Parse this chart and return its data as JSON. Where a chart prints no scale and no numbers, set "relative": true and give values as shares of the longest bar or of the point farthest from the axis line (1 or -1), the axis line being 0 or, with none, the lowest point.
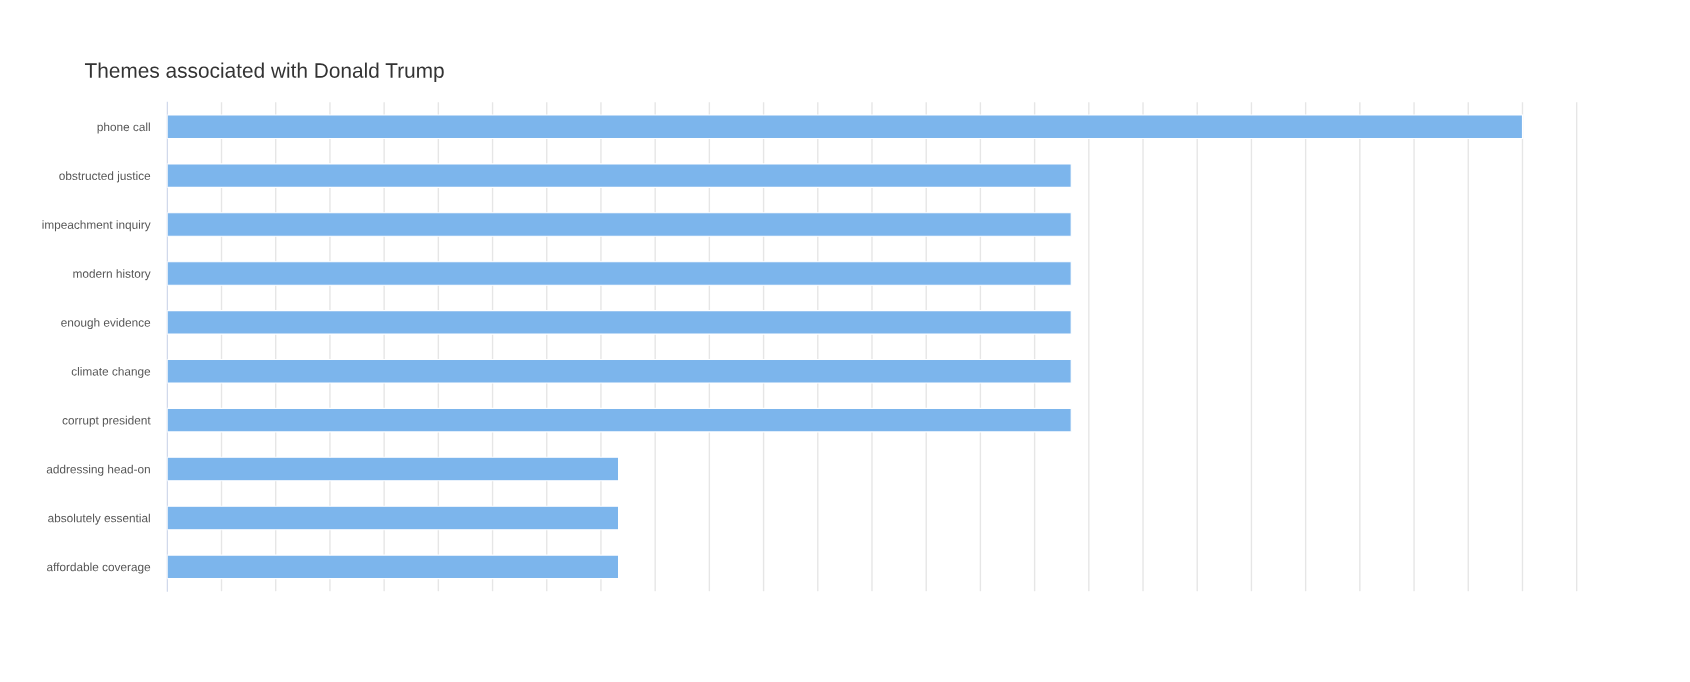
{
  "chart_data": {
    "type": "bar",
    "title": "Themes associated with Donald Trump",
    "orientation": "horizontal",
    "relative": true,
    "grid": "x",
    "categories": [
      "phone call",
      "obstructed justice",
      "impeachment inquiry",
      "modern history",
      "enough evidence",
      "climate change",
      "corrupt president",
      "addressing head-on",
      "absolutely essential",
      "affordable coverage"
    ],
    "values": [
      1,
      0.667,
      0.667,
      0.667,
      0.667,
      0.667,
      0.667,
      0.333,
      0.333,
      0.333
    ],
    "color": "#7cb5ec"
  }
}
